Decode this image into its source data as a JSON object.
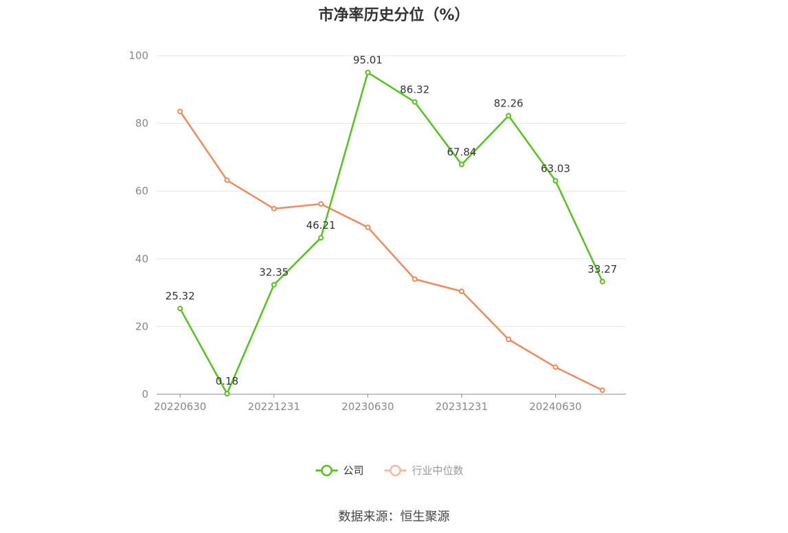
{
  "chart_data": {
    "type": "line",
    "title": "市净率历史分位（%）",
    "xlabel": "",
    "ylabel": "",
    "ylim": [
      0,
      100
    ],
    "yticks": [
      0,
      20,
      40,
      60,
      80,
      100
    ],
    "x": [
      "20220630",
      "20220930",
      "20221231",
      "20230331",
      "20230630",
      "20230930",
      "20231231",
      "20240331",
      "20240630",
      "20240930"
    ],
    "xtick_labels": [
      "20220630",
      "20221231",
      "20230630",
      "20231231",
      "20240630"
    ],
    "grid": true,
    "legend_position": "bottom",
    "series": [
      {
        "name": "公司",
        "color": "#52c41a",
        "values": [
          25.32,
          0.18,
          32.35,
          46.21,
          95.01,
          86.32,
          67.84,
          82.26,
          63.03,
          33.27
        ],
        "show_labels": true
      },
      {
        "name": "行业中位数",
        "color": "#f08a5d",
        "values": [
          83.5,
          63.2,
          54.8,
          56.2,
          49.3,
          34.0,
          30.4,
          16.2,
          8.0,
          1.2
        ],
        "show_labels": false
      }
    ]
  },
  "source": "数据来源：恒生聚源"
}
